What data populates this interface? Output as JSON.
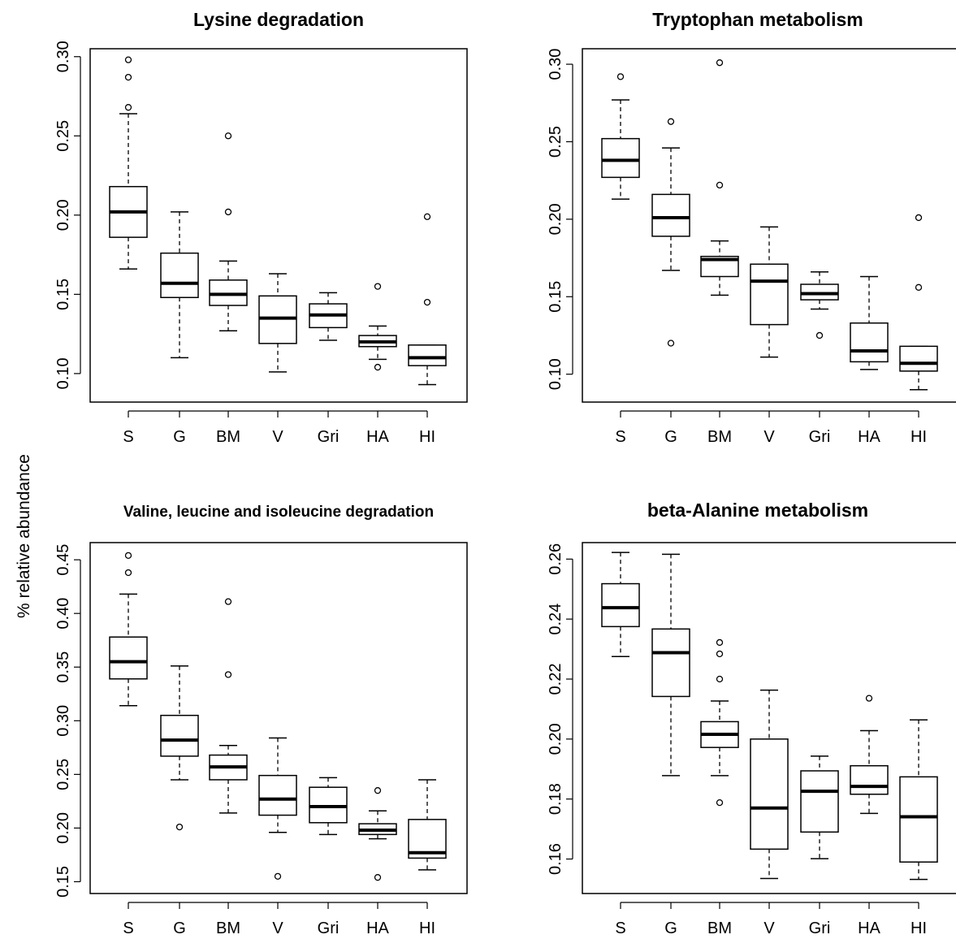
{
  "figure": {
    "ylabel": "% relative abundance"
  },
  "chart_data": [
    {
      "type": "boxplot",
      "title": "Lysine degradation",
      "categories": [
        "S",
        "G",
        "BM",
        "V",
        "Gri",
        "HA",
        "HI"
      ],
      "ylim": [
        0.082,
        0.305
      ],
      "yticks": [
        0.1,
        0.15,
        0.2,
        0.25,
        0.3
      ],
      "ytick_labels": [
        "0.10",
        "0.15",
        "0.20",
        "0.25",
        "0.30"
      ],
      "boxes": [
        {
          "low": 0.166,
          "q1": 0.186,
          "median": 0.202,
          "q3": 0.218,
          "high": 0.264,
          "outliers": [
            0.268,
            0.287,
            0.298
          ]
        },
        {
          "low": 0.11,
          "q1": 0.148,
          "median": 0.157,
          "q3": 0.176,
          "high": 0.202,
          "outliers": []
        },
        {
          "low": 0.127,
          "q1": 0.143,
          "median": 0.15,
          "q3": 0.159,
          "high": 0.171,
          "outliers": [
            0.202,
            0.25
          ]
        },
        {
          "low": 0.101,
          "q1": 0.119,
          "median": 0.135,
          "q3": 0.149,
          "high": 0.163,
          "outliers": []
        },
        {
          "low": 0.121,
          "q1": 0.129,
          "median": 0.137,
          "q3": 0.144,
          "high": 0.151,
          "outliers": []
        },
        {
          "low": 0.109,
          "q1": 0.117,
          "median": 0.12,
          "q3": 0.124,
          "high": 0.13,
          "outliers": [
            0.104,
            0.155
          ]
        },
        {
          "low": 0.093,
          "q1": 0.105,
          "median": 0.11,
          "q3": 0.118,
          "high": 0.118,
          "outliers": [
            0.145,
            0.199
          ]
        }
      ]
    },
    {
      "type": "boxplot",
      "title": "Tryptophan metabolism",
      "categories": [
        "S",
        "G",
        "BM",
        "V",
        "Gri",
        "HA",
        "HI"
      ],
      "ylim": [
        0.082,
        0.31
      ],
      "yticks": [
        0.1,
        0.15,
        0.2,
        0.25,
        0.3
      ],
      "ytick_labels": [
        "0.10",
        "0.15",
        "0.20",
        "0.25",
        "0.30"
      ],
      "boxes": [
        {
          "low": 0.213,
          "q1": 0.227,
          "median": 0.238,
          "q3": 0.252,
          "high": 0.277,
          "outliers": [
            0.292
          ]
        },
        {
          "low": 0.167,
          "q1": 0.189,
          "median": 0.201,
          "q3": 0.216,
          "high": 0.246,
          "outliers": [
            0.12,
            0.263
          ]
        },
        {
          "low": 0.151,
          "q1": 0.163,
          "median": 0.174,
          "q3": 0.176,
          "high": 0.186,
          "outliers": [
            0.222,
            0.301
          ]
        },
        {
          "low": 0.111,
          "q1": 0.132,
          "median": 0.16,
          "q3": 0.171,
          "high": 0.195,
          "outliers": []
        },
        {
          "low": 0.142,
          "q1": 0.148,
          "median": 0.152,
          "q3": 0.158,
          "high": 0.166,
          "outliers": [
            0.125
          ]
        },
        {
          "low": 0.103,
          "q1": 0.108,
          "median": 0.115,
          "q3": 0.133,
          "high": 0.163,
          "outliers": []
        },
        {
          "low": 0.09,
          "q1": 0.102,
          "median": 0.107,
          "q3": 0.118,
          "high": 0.118,
          "outliers": [
            0.156,
            0.201
          ]
        }
      ]
    },
    {
      "type": "boxplot",
      "title": "Valine, leucine and isoleucine degradation",
      "categories": [
        "S",
        "G",
        "BM",
        "V",
        "Gri",
        "HA",
        "HI"
      ],
      "ylim": [
        0.139,
        0.466
      ],
      "yticks": [
        0.15,
        0.2,
        0.25,
        0.3,
        0.35,
        0.4,
        0.45
      ],
      "ytick_labels": [
        "0.15",
        "0.20",
        "0.25",
        "0.30",
        "0.35",
        "0.40",
        "0.45"
      ],
      "boxes": [
        {
          "low": 0.314,
          "q1": 0.339,
          "median": 0.355,
          "q3": 0.378,
          "high": 0.418,
          "outliers": [
            0.438,
            0.454
          ]
        },
        {
          "low": 0.245,
          "q1": 0.267,
          "median": 0.282,
          "q3": 0.305,
          "high": 0.351,
          "outliers": [
            0.201
          ]
        },
        {
          "low": 0.214,
          "q1": 0.245,
          "median": 0.257,
          "q3": 0.268,
          "high": 0.277,
          "outliers": [
            0.343,
            0.411
          ]
        },
        {
          "low": 0.196,
          "q1": 0.212,
          "median": 0.227,
          "q3": 0.249,
          "high": 0.284,
          "outliers": [
            0.155
          ]
        },
        {
          "low": 0.194,
          "q1": 0.205,
          "median": 0.22,
          "q3": 0.238,
          "high": 0.247,
          "outliers": []
        },
        {
          "low": 0.19,
          "q1": 0.194,
          "median": 0.198,
          "q3": 0.204,
          "high": 0.216,
          "outliers": [
            0.154,
            0.235
          ]
        },
        {
          "low": 0.161,
          "q1": 0.172,
          "median": 0.177,
          "q3": 0.208,
          "high": 0.245,
          "outliers": []
        }
      ]
    },
    {
      "type": "boxplot",
      "title": "beta-Alanine metabolism",
      "categories": [
        "S",
        "G",
        "BM",
        "V",
        "Gri",
        "HA",
        "HI"
      ],
      "ylim": [
        0.1485,
        0.2655
      ],
      "yticks": [
        0.16,
        0.18,
        0.2,
        0.22,
        0.24,
        0.26
      ],
      "ytick_labels": [
        "0.16",
        "0.18",
        "0.20",
        "0.22",
        "0.24",
        "0.26"
      ],
      "boxes": [
        {
          "low": 0.2275,
          "q1": 0.2375,
          "median": 0.2438,
          "q3": 0.2518,
          "high": 0.2622,
          "outliers": []
        },
        {
          "low": 0.1878,
          "q1": 0.2142,
          "median": 0.2288,
          "q3": 0.2367,
          "high": 0.2616,
          "outliers": []
        },
        {
          "low": 0.1878,
          "q1": 0.1972,
          "median": 0.2016,
          "q3": 0.2058,
          "high": 0.2127,
          "outliers": [
            0.1788,
            0.22,
            0.2284,
            0.2322
          ]
        },
        {
          "low": 0.1535,
          "q1": 0.1633,
          "median": 0.177,
          "q3": 0.2,
          "high": 0.2163,
          "outliers": []
        },
        {
          "low": 0.1601,
          "q1": 0.169,
          "median": 0.1826,
          "q3": 0.1894,
          "high": 0.1943,
          "outliers": []
        },
        {
          "low": 0.1752,
          "q1": 0.1816,
          "median": 0.1842,
          "q3": 0.1911,
          "high": 0.2028,
          "outliers": [
            0.2136
          ]
        },
        {
          "low": 0.1532,
          "q1": 0.159,
          "median": 0.1741,
          "q3": 0.1874,
          "high": 0.2064,
          "outliers": []
        }
      ]
    }
  ]
}
